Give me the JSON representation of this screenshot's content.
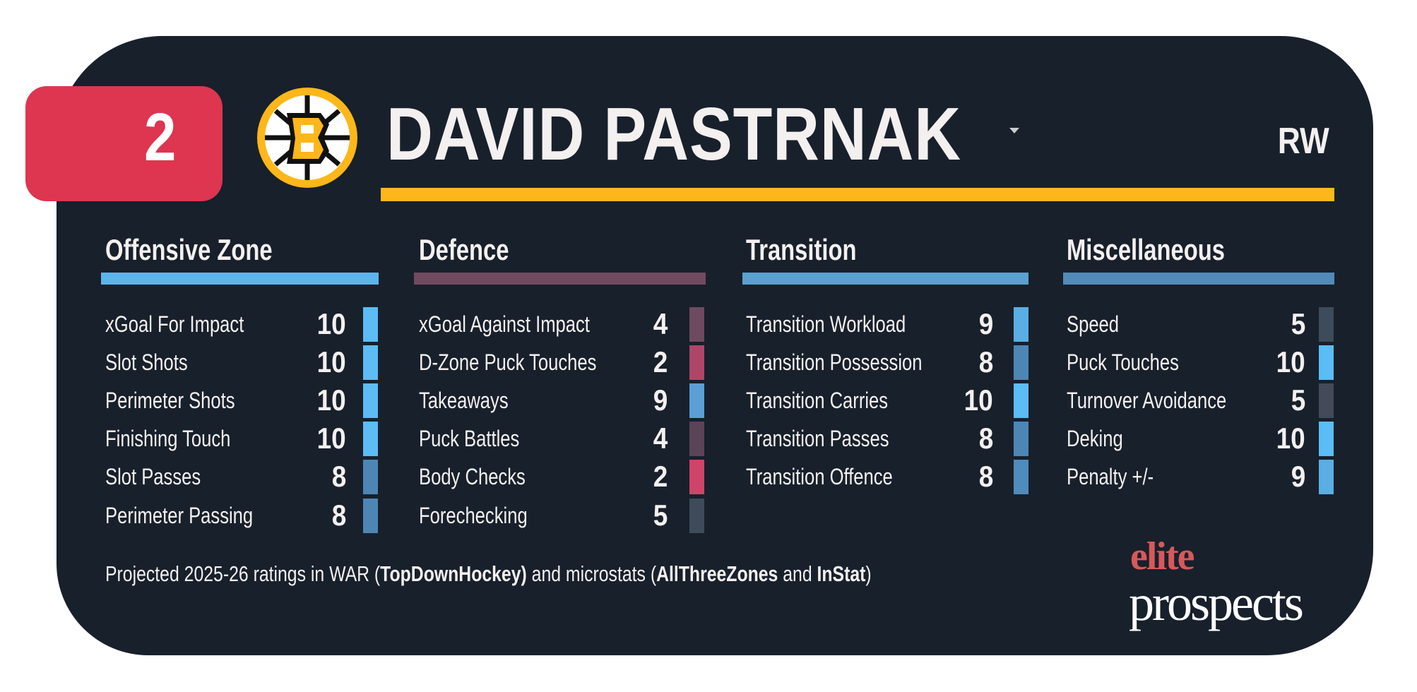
{
  "header": {
    "rank": "2",
    "player_name": "DAVID PASTRNAK",
    "position": "RW",
    "team_logo_icon": "bruins-logo",
    "accent_color": "#fdb71a",
    "rank_color": "#de3550"
  },
  "sections": [
    {
      "title": "Offensive Zone",
      "color": "#5db4ea",
      "items": [
        {
          "label": "xGoal For Impact",
          "value": "10",
          "color": "#5bbcf6"
        },
        {
          "label": "Slot Shots",
          "value": "10",
          "color": "#5bbcf6"
        },
        {
          "label": "Perimeter Shots",
          "value": "10",
          "color": "#5bbcf6"
        },
        {
          "label": "Finishing Touch",
          "value": "10",
          "color": "#5bbcf6"
        },
        {
          "label": "Slot Passes",
          "value": "8",
          "color": "#4d86b5"
        },
        {
          "label": "Perimeter Passing",
          "value": "8",
          "color": "#4d86b5"
        }
      ]
    },
    {
      "title": "Defence",
      "color": "#724a60",
      "items": [
        {
          "label": "xGoal Against Impact",
          "value": "4",
          "color": "#6e4a60"
        },
        {
          "label": "D-Zone Puck Touches",
          "value": "2",
          "color": "#b0456a"
        },
        {
          "label": "Takeaways",
          "value": "9",
          "color": "#5aa0d5"
        },
        {
          "label": "Puck Battles",
          "value": "4",
          "color": "#5a4558"
        },
        {
          "label": "Body Checks",
          "value": "2",
          "color": "#cf4569"
        },
        {
          "label": "Forechecking",
          "value": "5",
          "color": "#3e4b5a"
        }
      ]
    },
    {
      "title": "Transition",
      "color": "#5aa1d0",
      "items": [
        {
          "label": "Transition Workload",
          "value": "9",
          "color": "#5aaee3"
        },
        {
          "label": "Transition Possession",
          "value": "8",
          "color": "#4d86b5"
        },
        {
          "label": "Transition Carries",
          "value": "10",
          "color": "#5bbcf6"
        },
        {
          "label": "Transition Passes",
          "value": "8",
          "color": "#4d86b5"
        },
        {
          "label": "Transition Offence",
          "value": "8",
          "color": "#4f8bbd"
        }
      ]
    },
    {
      "title": "Miscellaneous",
      "color": "#528ab9",
      "items": [
        {
          "label": "Speed",
          "value": "5",
          "color": "#3e4b5a"
        },
        {
          "label": "Puck Touches",
          "value": "10",
          "color": "#5bbcf6"
        },
        {
          "label": "Turnover Avoidance",
          "value": "5",
          "color": "#454a5a"
        },
        {
          "label": "Deking",
          "value": "10",
          "color": "#5bbcf6"
        },
        {
          "label": "Penalty +/-",
          "value": "9",
          "color": "#5aaee3"
        }
      ]
    }
  ],
  "footer": {
    "text_1": "Projected 2025-26 ratings in WAR (",
    "source_1": "TopDownHockey)",
    "text_2": " and microstats (",
    "source_2": "AllThreeZones",
    "text_3": " and ",
    "source_3": "InStat",
    "text_4": ")"
  },
  "brand": {
    "line1": "elite",
    "line2": "prospects"
  }
}
